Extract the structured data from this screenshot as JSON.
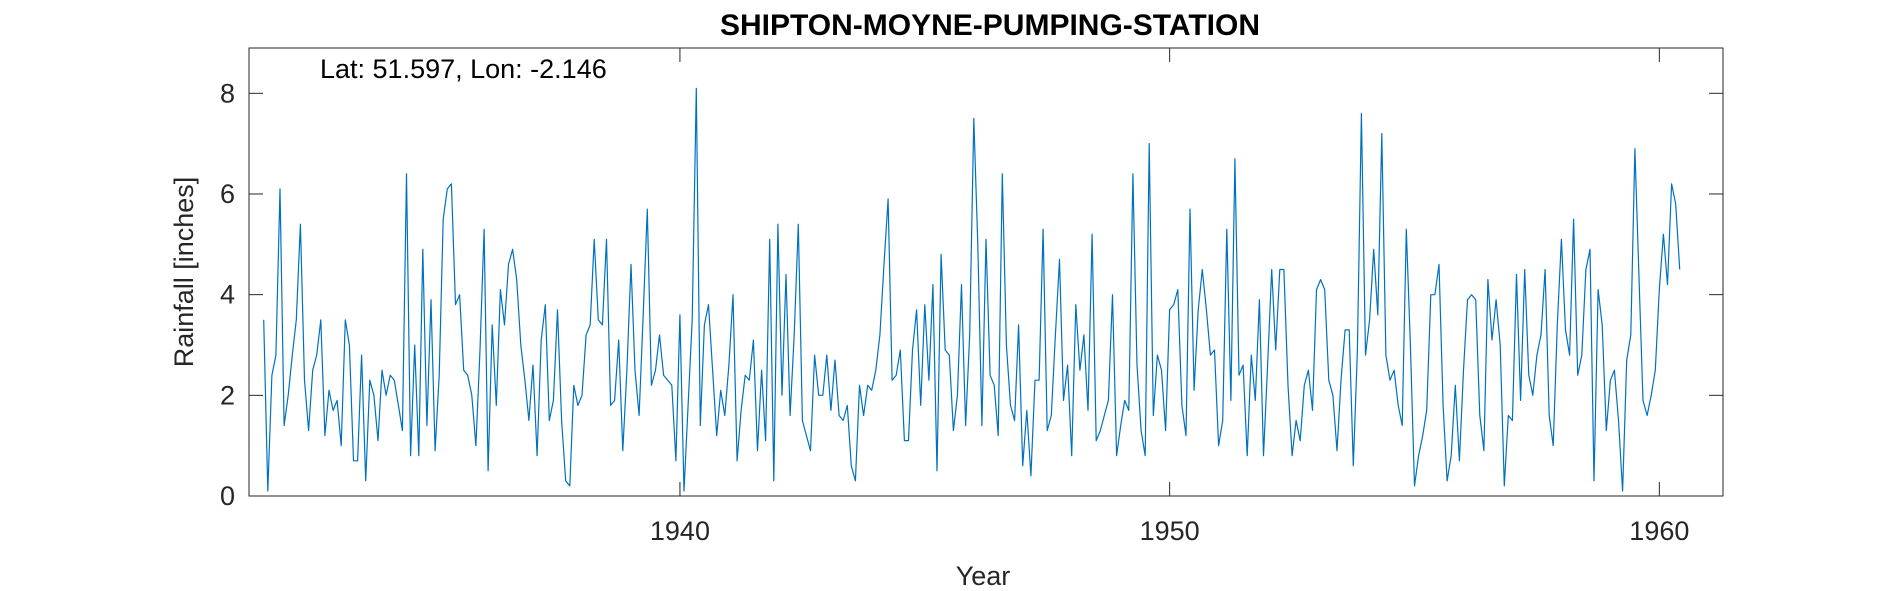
{
  "chart_data": {
    "type": "line",
    "title": "SHIPTON-MOYNE-PUMPING-STATION",
    "annotation": "Lat: 51.597, Lon: -2.146",
    "xlabel": "Year",
    "ylabel": "Rainfall [inches]",
    "xlim": [
      1931.2,
      1961.3
    ],
    "ylim": [
      0,
      8.9
    ],
    "xticks": [
      1940,
      1950,
      1960
    ],
    "xtick_labels": [
      "1940",
      "1950",
      "1960"
    ],
    "yticks": [
      0,
      2,
      4,
      6,
      8
    ],
    "ytick_labels": [
      "0",
      "2",
      "4",
      "6",
      "8"
    ],
    "grid": false,
    "series": [
      {
        "name": "",
        "color": "#0072BD",
        "x_start": "1931-07",
        "x_step": "monthly",
        "values": [
          3.5,
          0.1,
          2.4,
          2.8,
          6.1,
          1.4,
          2.0,
          2.8,
          3.5,
          5.4,
          2.3,
          1.3,
          2.5,
          2.8,
          3.5,
          1.2,
          2.1,
          1.7,
          1.9,
          1.0,
          3.5,
          3.0,
          0.7,
          0.7,
          2.8,
          0.3,
          2.3,
          2.0,
          1.1,
          2.5,
          2.0,
          2.4,
          2.3,
          1.8,
          1.3,
          6.4,
          0.8,
          3.0,
          0.8,
          4.9,
          1.4,
          3.9,
          0.9,
          2.4,
          5.5,
          6.1,
          6.2,
          3.8,
          4.0,
          2.5,
          2.4,
          2.0,
          1.0,
          2.9,
          5.3,
          0.5,
          3.4,
          1.8,
          4.1,
          3.4,
          4.6,
          4.9,
          4.3,
          3.0,
          2.3,
          1.5,
          2.6,
          0.8,
          3.1,
          3.8,
          1.5,
          1.9,
          3.7,
          1.5,
          0.3,
          0.2,
          2.2,
          1.8,
          2.0,
          3.2,
          3.4,
          5.1,
          3.5,
          3.4,
          5.1,
          1.8,
          1.9,
          3.1,
          0.9,
          2.5,
          4.6,
          2.5,
          1.6,
          3.6,
          5.7,
          2.2,
          2.5,
          3.2,
          2.4,
          2.3,
          2.2,
          0.7,
          3.6,
          0.1,
          1.8,
          3.5,
          8.1,
          1.4,
          3.4,
          3.8,
          2.5,
          1.2,
          2.1,
          1.6,
          2.6,
          4.0,
          0.7,
          1.7,
          2.4,
          2.3,
          3.1,
          0.9,
          2.5,
          1.1,
          5.1,
          0.3,
          5.4,
          2.0,
          4.4,
          1.6,
          3.2,
          5.4,
          1.5,
          1.2,
          0.9,
          2.8,
          2.0,
          2.0,
          2.8,
          1.7,
          2.7,
          1.6,
          1.5,
          1.8,
          0.6,
          0.3,
          2.2,
          1.6,
          2.2,
          2.1,
          2.5,
          3.2,
          4.6,
          5.9,
          2.3,
          2.4,
          2.9,
          1.1,
          1.1,
          2.9,
          3.7,
          1.8,
          3.8,
          2.3,
          4.2,
          0.5,
          4.8,
          2.9,
          2.8,
          1.3,
          2.0,
          4.2,
          1.4,
          3.2,
          7.5,
          5.0,
          1.4,
          5.1,
          2.4,
          2.2,
          1.2,
          6.4,
          3.0,
          1.8,
          1.5,
          3.4,
          0.6,
          1.7,
          0.4,
          2.3,
          2.3,
          5.3,
          1.3,
          1.6,
          3.2,
          4.7,
          1.9,
          2.6,
          0.8,
          3.8,
          2.5,
          3.2,
          1.7,
          5.2,
          1.1,
          1.3,
          1.6,
          1.9,
          4.0,
          0.8,
          1.4,
          1.9,
          1.7,
          6.4,
          2.6,
          1.3,
          0.8,
          7.0,
          1.6,
          2.8,
          2.5,
          1.3,
          3.7,
          3.8,
          4.1,
          1.8,
          1.2,
          5.7,
          2.1,
          3.7,
          4.5,
          3.7,
          2.8,
          2.9,
          1.0,
          1.5,
          5.3,
          1.9,
          6.7,
          2.4,
          2.6,
          0.8,
          2.8,
          1.9,
          3.9,
          0.8,
          2.6,
          4.5,
          2.9,
          4.5,
          4.5,
          2.2,
          0.8,
          1.5,
          1.1,
          2.2,
          2.5,
          1.7,
          4.1,
          4.3,
          4.1,
          2.3,
          2.0,
          0.9,
          2.3,
          3.3,
          3.3,
          0.6,
          2.9,
          7.6,
          2.8,
          3.5,
          4.9,
          3.6,
          7.2,
          2.8,
          2.3,
          2.5,
          1.8,
          1.4,
          5.3,
          3.0,
          0.2,
          0.8,
          1.2,
          1.7,
          4.0,
          4.0,
          4.6,
          1.8,
          0.3,
          0.8,
          2.2,
          0.7,
          2.5,
          3.9,
          4.0,
          3.9,
          1.6,
          0.9,
          4.3,
          3.1,
          3.9,
          3.0,
          0.2,
          1.6,
          1.5,
          4.4,
          1.9,
          4.5,
          2.4,
          2.0,
          2.8,
          3.2,
          4.5,
          1.6,
          1.0,
          3.4,
          5.1,
          3.3,
          2.8,
          5.5,
          2.4,
          2.8,
          4.5,
          4.9,
          0.3,
          4.1,
          3.4,
          1.3,
          2.3,
          2.5,
          1.5,
          0.1,
          2.7,
          3.2,
          6.9,
          4.4,
          1.9,
          1.6,
          2.0,
          2.5,
          4.1,
          5.2,
          4.2,
          6.2,
          5.8,
          4.5
        ]
      }
    ]
  }
}
